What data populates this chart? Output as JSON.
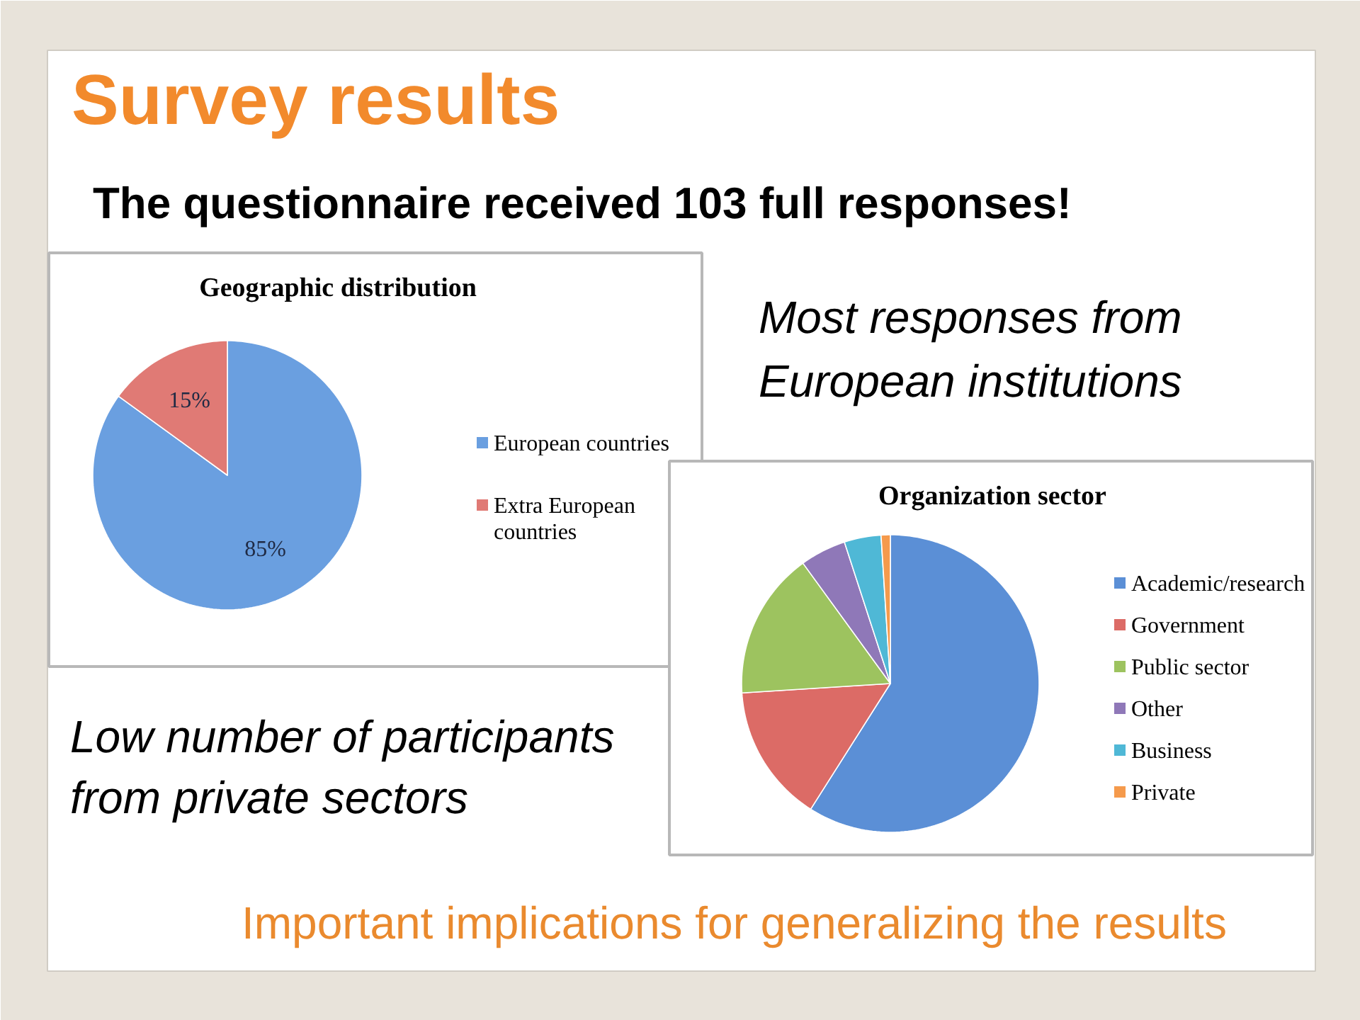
{
  "chart_data": [
    {
      "type": "other",
      "title": "Survey results",
      "subtitle": "The questionnaire received 103 full responses!",
      "annotations": [
        "Most responses from European institutions",
        "Low number of participants from private sectors",
        "Important implications for generalizing the results"
      ]
    },
    {
      "type": "pie",
      "title": "Geographic distribution",
      "categories": [
        "European countries",
        "Extra European countries"
      ],
      "values": [
        85,
        15
      ],
      "value_labels": [
        "85%",
        "15%"
      ],
      "colors": [
        "#6a9fe0",
        "#e07a75"
      ],
      "legend": "right"
    },
    {
      "type": "pie",
      "title": "Organization sector",
      "categories": [
        "Academic/research",
        "Government",
        "Public sector",
        "Other",
        "Business",
        "Private"
      ],
      "values": [
        59,
        15,
        16,
        5,
        4,
        1
      ],
      "colors": [
        "#5b8fd6",
        "#dc6b66",
        "#9dc35f",
        "#8f78b8",
        "#4fb8d6",
        "#f59a4c"
      ],
      "legend": "right"
    }
  ]
}
